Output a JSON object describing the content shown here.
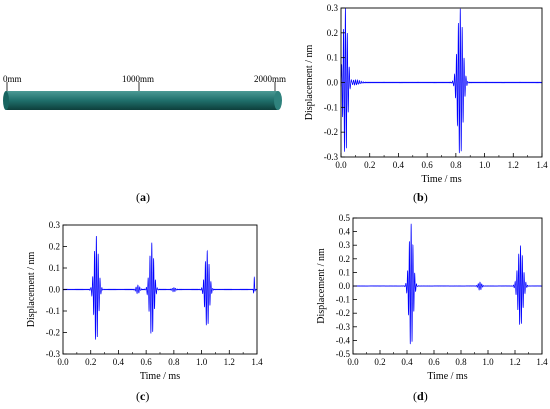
{
  "figure": {
    "labels": {
      "a": "(a)",
      "b": "(b)",
      "c": "(c)",
      "d": "(d)"
    },
    "pipe": {
      "markers": [
        "0mm",
        "1000mm",
        "2000mm"
      ],
      "color": "#1f6f6b"
    }
  },
  "chart_data": [
    {
      "id": "b",
      "type": "line",
      "xlabel": "Time / ms",
      "ylabel": "Displacement / nm",
      "xlim": [
        0.0,
        1.4
      ],
      "ylim": [
        -0.3,
        0.3
      ],
      "xticks": [
        "0.0",
        "0.2",
        "0.4",
        "0.6",
        "0.8",
        "1.0",
        "1.2",
        "1.4"
      ],
      "yticks": [
        "0.3",
        "0.2",
        "0.1",
        "0.0",
        "-0.1",
        "-0.2",
        "-0.3"
      ],
      "color": "#0000ff",
      "packets": [
        {
          "t": 0.03,
          "amp": 0.3,
          "width": 0.05
        },
        {
          "t": 0.1,
          "amp": 0.01,
          "width": 0.1
        },
        {
          "t": 0.83,
          "amp": 0.3,
          "width": 0.06
        }
      ]
    },
    {
      "id": "c",
      "type": "line",
      "xlabel": "Time / ms",
      "ylabel": "Displacement / nm",
      "xlim": [
        0.0,
        1.4
      ],
      "ylim": [
        -0.3,
        0.3
      ],
      "xticks": [
        "0.0",
        "0.2",
        "0.4",
        "0.6",
        "0.8",
        "1.0",
        "1.2",
        "1.4"
      ],
      "yticks": [
        "0.3",
        "0.2",
        "0.1",
        "0.0",
        "-0.1",
        "-0.2",
        "-0.3"
      ],
      "color": "#0000ff",
      "packets": [
        {
          "t": 0.24,
          "amp": 0.25,
          "width": 0.05
        },
        {
          "t": 0.54,
          "amp": 0.02,
          "width": 0.04
        },
        {
          "t": 0.64,
          "amp": 0.22,
          "width": 0.05
        },
        {
          "t": 0.8,
          "amp": 0.01,
          "width": 0.04
        },
        {
          "t": 1.04,
          "amp": 0.18,
          "width": 0.05
        },
        {
          "t": 1.38,
          "amp": 0.06,
          "width": 0.01
        }
      ]
    },
    {
      "id": "d",
      "type": "line",
      "xlabel": "Time / ms",
      "ylabel": "Displacement / nm",
      "xlim": [
        0.0,
        1.4
      ],
      "ylim": [
        -0.5,
        0.5
      ],
      "xticks": [
        "0.0",
        "0.2",
        "0.4",
        "0.6",
        "0.8",
        "1.0",
        "1.2",
        "1.4"
      ],
      "yticks": [
        "0.5",
        "0.4",
        "0.3",
        "0.2",
        "0.1",
        "0.0",
        "-0.1",
        "-0.2",
        "-0.3",
        "-0.4",
        "-0.5"
      ],
      "color": "#0000ff",
      "packets": [
        {
          "t": 0.43,
          "amp": 0.46,
          "width": 0.05
        },
        {
          "t": 0.94,
          "amp": 0.03,
          "width": 0.04
        },
        {
          "t": 1.24,
          "amp": 0.3,
          "width": 0.06
        }
      ]
    }
  ]
}
